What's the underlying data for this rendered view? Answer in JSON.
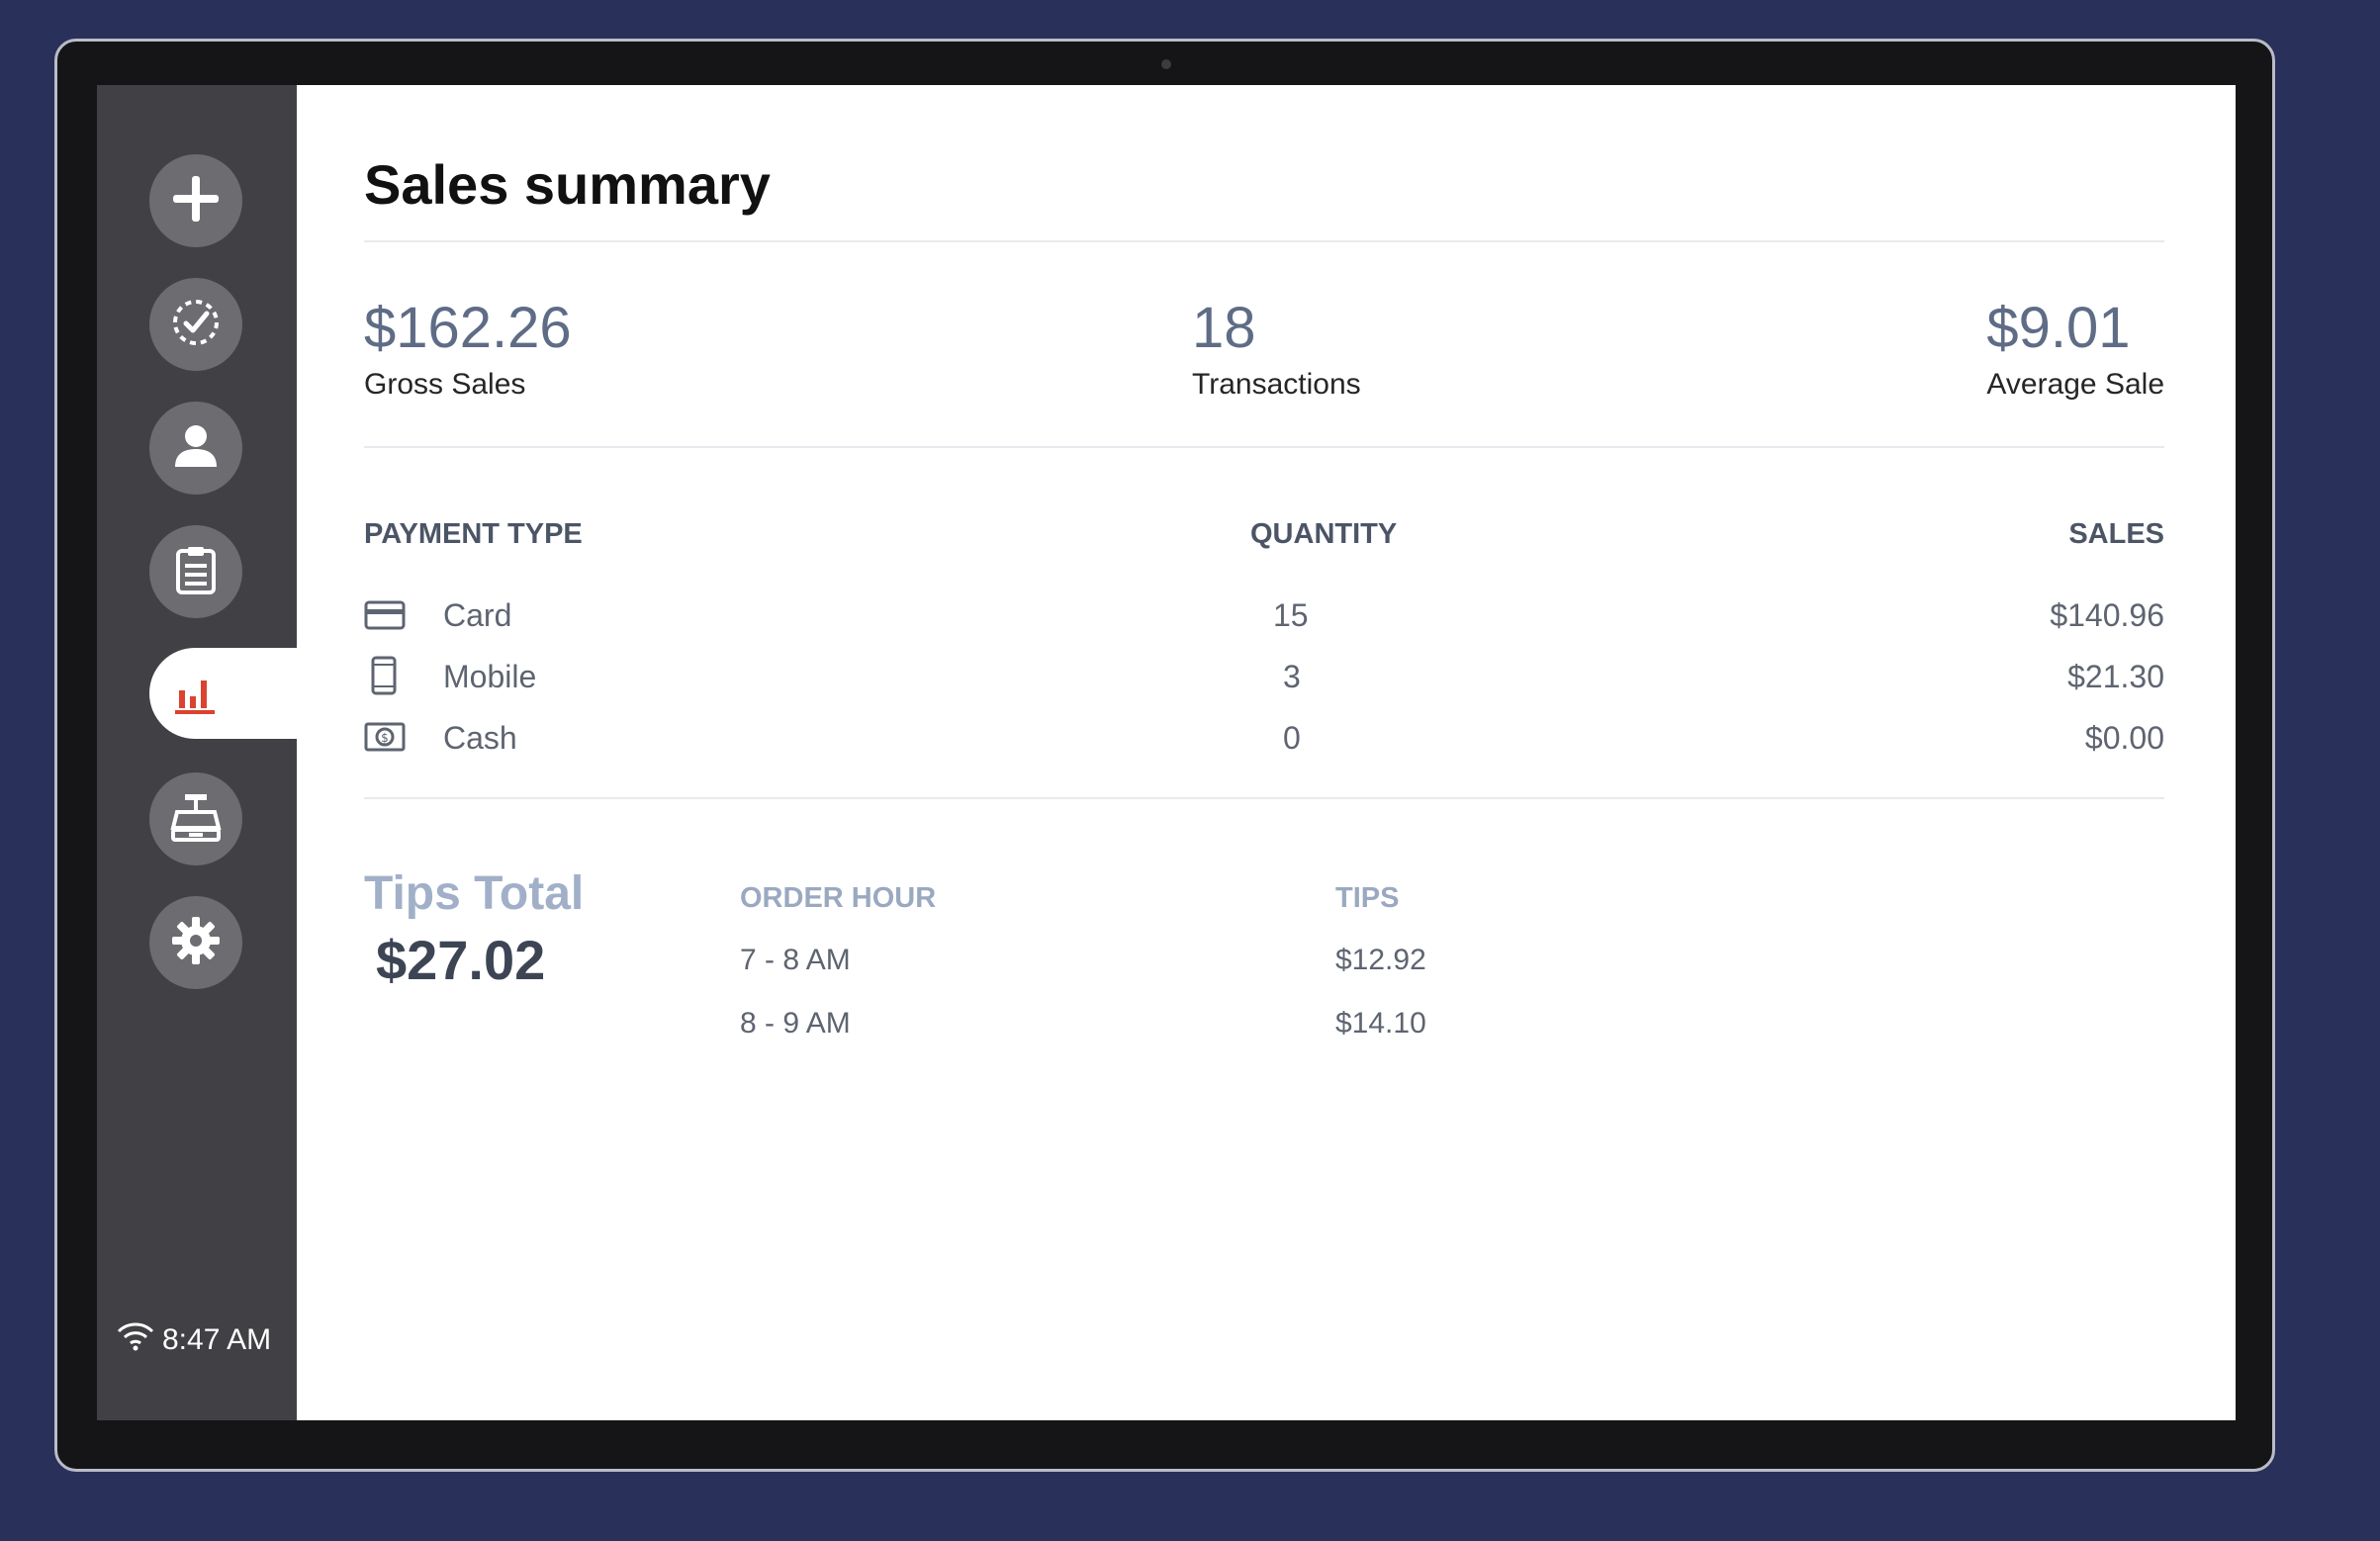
{
  "sidebar": {
    "items": [
      {
        "icon": "plus-icon",
        "active": false
      },
      {
        "icon": "check-circle-icon",
        "active": false
      },
      {
        "icon": "user-icon",
        "active": false
      },
      {
        "icon": "clipboard-icon",
        "active": false
      },
      {
        "icon": "bar-chart-icon",
        "active": true
      },
      {
        "icon": "cash-register-icon",
        "active": false
      },
      {
        "icon": "gear-icon",
        "active": false
      }
    ],
    "time": "8:47 AM",
    "wifi_icon": "wifi-icon"
  },
  "main": {
    "title": "Sales summary",
    "stats": {
      "gross_sales_value": "$162.26",
      "gross_sales_label": "Gross Sales",
      "transactions_value": "18",
      "transactions_label": "Transactions",
      "average_sale_value": "$9.01",
      "average_sale_label": "Average Sale"
    },
    "payment_table": {
      "headers": {
        "type": "PAYMENT TYPE",
        "quantity": "QUANTITY",
        "sales": "SALES"
      },
      "rows": [
        {
          "icon": "credit-card-icon",
          "type": "Card",
          "quantity": "15",
          "sales": "$140.96"
        },
        {
          "icon": "mobile-phone-icon",
          "type": "Mobile",
          "quantity": "3",
          "sales": "$21.30"
        },
        {
          "icon": "cash-icon",
          "type": "Cash",
          "quantity": "0",
          "sales": "$0.00"
        }
      ]
    },
    "tips": {
      "title": "Tips Total",
      "total": "$27.02",
      "headers": {
        "hour": "ORDER HOUR",
        "tips": "TIPS"
      },
      "rows": [
        {
          "hour": "7 - 8 AM",
          "tips": "$12.92"
        },
        {
          "hour": "8 - 9 AM",
          "tips": "$14.10"
        }
      ]
    }
  },
  "colors": {
    "background": "#293059",
    "sidebar": "#414145",
    "accent_active": "#d9432f",
    "stat_value": "#5e6c86",
    "tips_title": "#a1b0c8"
  }
}
